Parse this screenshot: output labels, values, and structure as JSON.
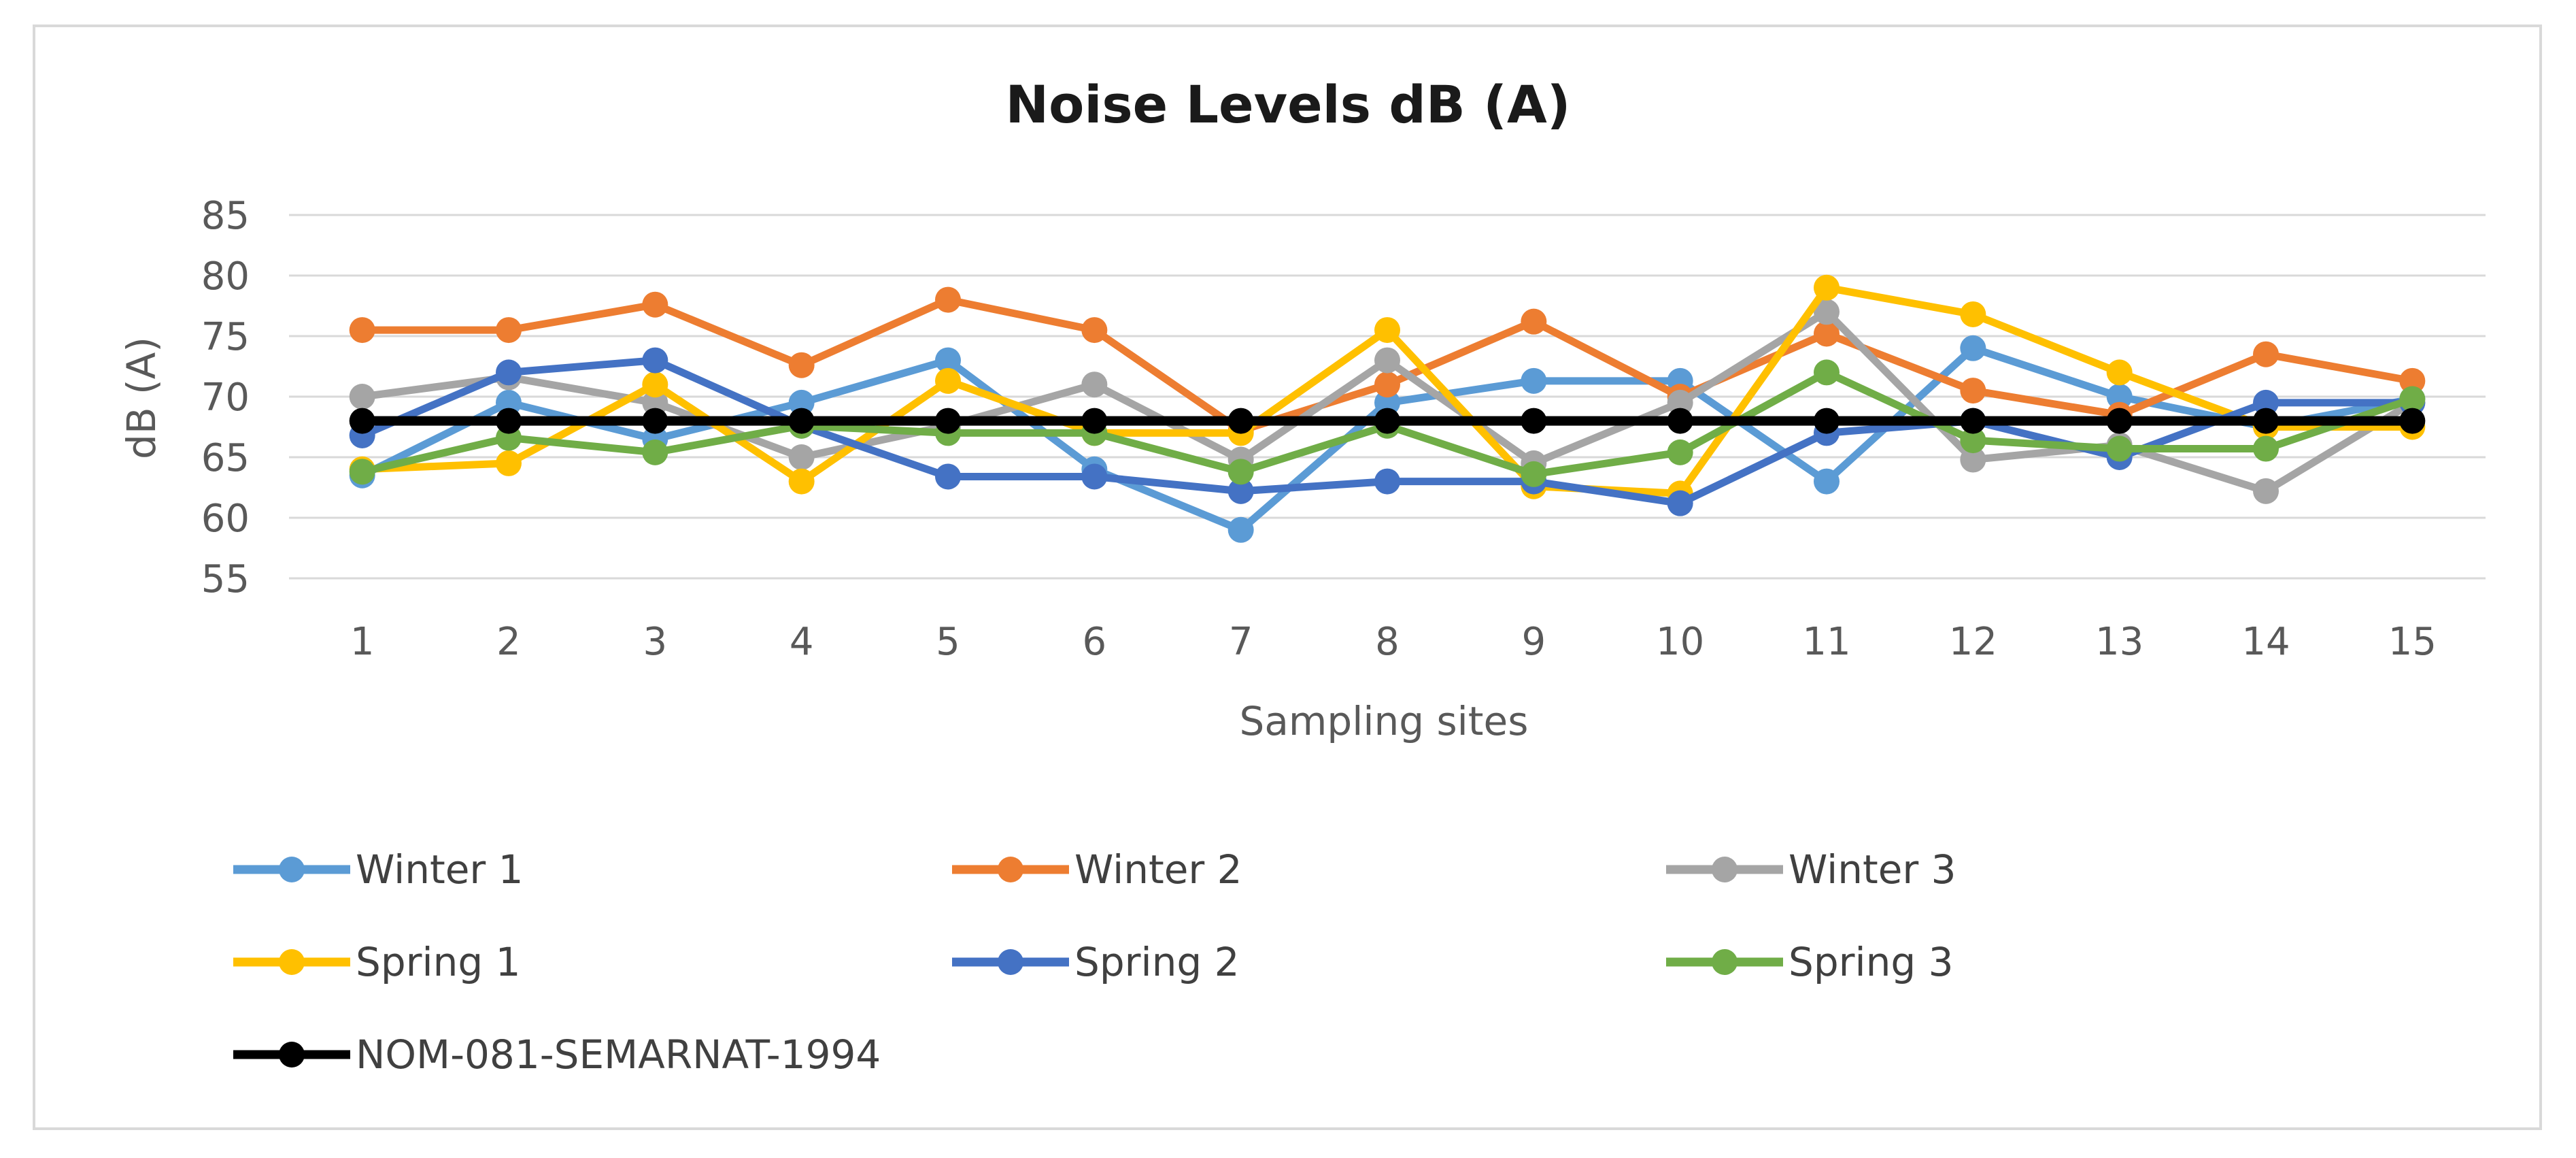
{
  "chart_data": {
    "type": "line",
    "title": "Noise Levels dB (A)",
    "xlabel": "Sampling sites",
    "ylabel": "dB (A)",
    "ylim": [
      55,
      85
    ],
    "yticks": [
      "55",
      "60",
      "65",
      "70",
      "75",
      "80",
      "85"
    ],
    "categories": [
      "1",
      "2",
      "3",
      "4",
      "5",
      "6",
      "7",
      "8",
      "9",
      "10",
      "11",
      "12",
      "13",
      "14",
      "15"
    ],
    "grid": true,
    "legend_position": "bottom",
    "series": [
      {
        "name": "Winter 1",
        "color": "#5b9bd5",
        "values": [
          63.5,
          69.5,
          66.5,
          69.5,
          73.0,
          64.0,
          59.0,
          69.5,
          71.3,
          71.3,
          63.0,
          74.0,
          70.0,
          67.5,
          69.8
        ]
      },
      {
        "name": "Winter 2",
        "color": "#ed7d31",
        "values": [
          75.5,
          75.5,
          77.6,
          72.6,
          78.0,
          75.5,
          67.2,
          71.0,
          76.2,
          70.0,
          75.2,
          70.5,
          68.5,
          73.5,
          71.3
        ]
      },
      {
        "name": "Winter 3",
        "color": "#a5a5a5",
        "values": [
          70.0,
          71.6,
          69.5,
          65.0,
          67.6,
          71.0,
          64.8,
          73.0,
          64.5,
          69.5,
          77.0,
          64.8,
          66.0,
          62.2,
          69.5
        ]
      },
      {
        "name": "Spring 1",
        "color": "#ffc000",
        "values": [
          64.0,
          64.5,
          71.0,
          63.0,
          71.3,
          67.0,
          67.0,
          75.5,
          62.6,
          62.0,
          79.0,
          76.8,
          72.0,
          67.5,
          67.5
        ]
      },
      {
        "name": "Spring 2",
        "color": "#4472c4",
        "values": [
          66.8,
          72.0,
          73.0,
          67.6,
          63.4,
          63.4,
          62.2,
          63.0,
          63.0,
          61.2,
          67.0,
          68.0,
          65.0,
          69.5,
          69.5
        ]
      },
      {
        "name": "Spring 3",
        "color": "#70ad47",
        "values": [
          63.8,
          66.6,
          65.4,
          67.6,
          67.0,
          67.0,
          63.8,
          67.6,
          63.6,
          65.4,
          72.0,
          66.4,
          65.7,
          65.7,
          69.8
        ]
      },
      {
        "name": "NOM-081-SEMARNAT-1994",
        "color": "#000000",
        "values": [
          68,
          68,
          68,
          68,
          68,
          68,
          68,
          68,
          68,
          68,
          68,
          68,
          68,
          68,
          68
        ]
      }
    ]
  }
}
